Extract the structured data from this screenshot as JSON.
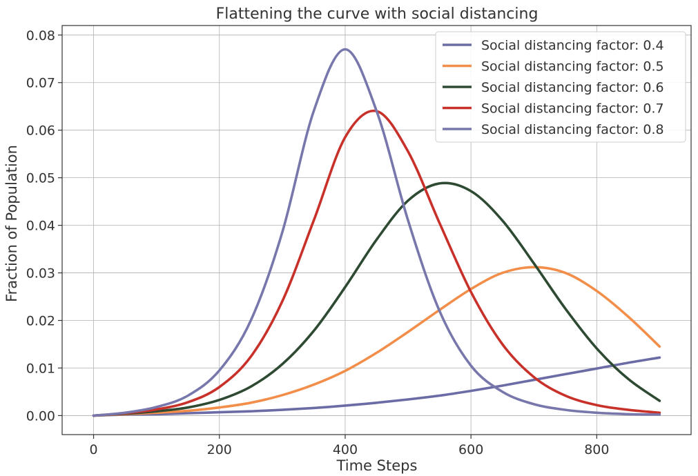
{
  "chart_data": {
    "type": "line",
    "title": "Flattening the curve with social distancing",
    "xlabel": "Time Steps",
    "ylabel": "Fraction of Population",
    "xlim": [
      -50,
      950
    ],
    "ylim": [
      -0.004,
      0.082
    ],
    "xticks": [
      0,
      200,
      400,
      600,
      800
    ],
    "xtick_labels": [
      "0",
      "200",
      "400",
      "600",
      "800"
    ],
    "yticks": [
      0.0,
      0.01,
      0.02,
      0.03,
      0.04,
      0.05,
      0.06,
      0.07,
      0.08
    ],
    "ytick_labels": [
      "0.00",
      "0.01",
      "0.02",
      "0.03",
      "0.04",
      "0.05",
      "0.06",
      "0.07",
      "0.08"
    ],
    "grid": true,
    "legend_position": "top-right",
    "x": [
      0,
      50,
      100,
      150,
      200,
      250,
      300,
      350,
      400,
      450,
      500,
      550,
      600,
      650,
      700,
      750,
      800,
      850,
      900
    ],
    "series": [
      {
        "name": "Social distancing factor: 0.4",
        "color": "#6B6BA6",
        "values": [
          0.0,
          0.0002,
          0.0003,
          0.0005,
          0.0007,
          0.0009,
          0.0012,
          0.0016,
          0.0021,
          0.0027,
          0.0034,
          0.0042,
          0.0052,
          0.0063,
          0.0075,
          0.0087,
          0.0099,
          0.0111,
          0.0122
        ]
      },
      {
        "name": "Social distancing factor: 0.5",
        "color": "#F28E4A",
        "values": [
          0.0,
          0.0003,
          0.0006,
          0.001,
          0.0017,
          0.0027,
          0.0043,
          0.0065,
          0.0094,
          0.0132,
          0.0176,
          0.0222,
          0.0266,
          0.03,
          0.0312,
          0.03,
          0.0262,
          0.0208,
          0.0145
        ]
      },
      {
        "name": "Social distancing factor: 0.6",
        "color": "#2E4A33",
        "values": [
          0.0,
          0.0004,
          0.0009,
          0.0017,
          0.0033,
          0.0061,
          0.0108,
          0.0178,
          0.027,
          0.037,
          0.0452,
          0.0488,
          0.0472,
          0.041,
          0.032,
          0.0225,
          0.0141,
          0.0077,
          0.0031
        ]
      },
      {
        "name": "Social distancing factor: 0.7",
        "color": "#C8312A",
        "values": [
          0.0,
          0.0005,
          0.0013,
          0.0028,
          0.006,
          0.0124,
          0.024,
          0.041,
          0.0585,
          0.064,
          0.0555,
          0.0405,
          0.026,
          0.015,
          0.0081,
          0.0042,
          0.0022,
          0.0012,
          0.0006
        ]
      },
      {
        "name": "Social distancing factor: 0.8",
        "color": "#7777AC",
        "values": [
          0.0,
          0.0006,
          0.0018,
          0.0042,
          0.0095,
          0.02,
          0.0385,
          0.064,
          0.077,
          0.064,
          0.041,
          0.022,
          0.0105,
          0.005,
          0.0024,
          0.0012,
          0.0006,
          0.0003,
          0.0002
        ]
      }
    ]
  }
}
